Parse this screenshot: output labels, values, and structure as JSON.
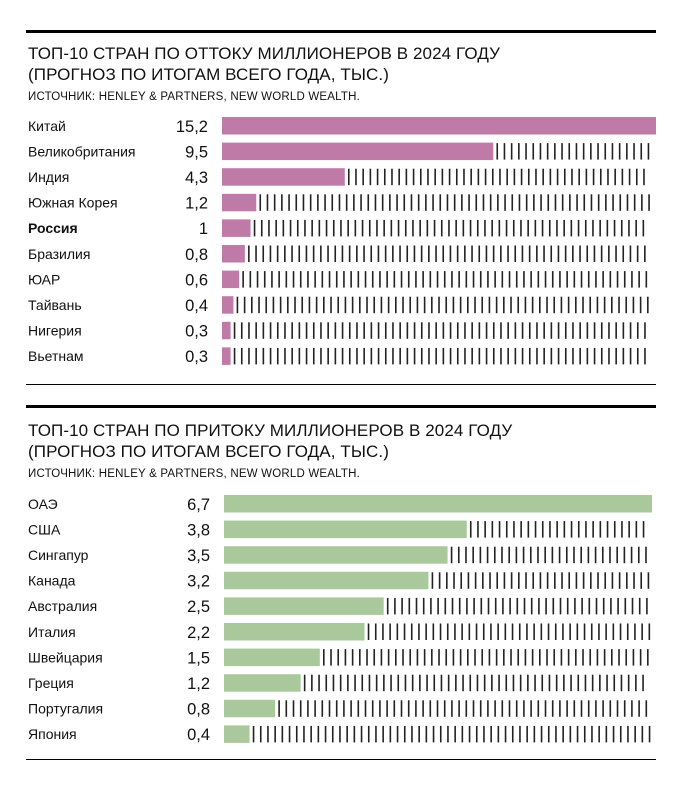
{
  "charts": [
    {
      "title_line1": "ТОП-10 СТРАН ПО ОТТОКУ МИЛЛИОНЕРОВ В 2024 ГОДУ",
      "title_line2": "(ПРОГНОЗ ПО ИТОГАМ ВСЕГО ГОДА, ТЫС.)",
      "source": "ИСТОЧНИК: HENLEY & PARTNERS, NEW WORLD WEALTH."
    },
    {
      "title_line1": "ТОП-10 СТРАН ПО ПРИТОКУ МИЛЛИОНЕРОВ В 2024 ГОДУ",
      "title_line2": "(ПРОГНОЗ ПО ИТОГАМ ВСЕГО ГОДА, ТЫС.)",
      "source": "ИСТОЧНИК: HENLEY & PARTNERS, NEW WORLD WEALTH."
    }
  ],
  "chart_data": [
    {
      "type": "bar",
      "orientation": "horizontal",
      "title": "ТОП-10 СТРАН ПО ОТТОКУ МИЛЛИОНЕРОВ В 2024 ГОДУ (ПРОГНОЗ ПО ИТОГАМ ВСЕГО ГОДА, ТЫС.)",
      "categories": [
        "Китай",
        "Великобритания",
        "Индия",
        "Южная Корея",
        "Россия",
        "Бразилия",
        "ЮАР",
        "Тайвань",
        "Нигерия",
        "Вьетнам"
      ],
      "values": [
        15.2,
        9.5,
        4.3,
        1.2,
        1,
        0.8,
        0.6,
        0.4,
        0.3,
        0.3
      ],
      "value_labels": [
        "15,2",
        "9,5",
        "4,3",
        "1,2",
        "1",
        "0,8",
        "0,6",
        "0,4",
        "0,3",
        "0,3"
      ],
      "highlight": [
        "Россия"
      ],
      "bar_color": "#bf7aa8",
      "tick_color": "#222222",
      "xlim": [
        0,
        15.2
      ],
      "grid": false,
      "legend": "none"
    },
    {
      "type": "bar",
      "orientation": "horizontal",
      "title": "ТОП-10 СТРАН ПО ПРИТОКУ МИЛЛИОНЕРОВ В 2024 ГОДУ (ПРОГНОЗ ПО ИТОГАМ ВСЕГО ГОДА, ТЫС.)",
      "categories": [
        "ОАЭ",
        "США",
        "Сингапур",
        "Канада",
        "Австралия",
        "Италия",
        "Швейцария",
        "Греция",
        "Португалия",
        "Япония"
      ],
      "values": [
        6.7,
        3.8,
        3.5,
        3.2,
        2.5,
        2.2,
        1.5,
        1.2,
        0.8,
        0.4
      ],
      "value_labels": [
        "6,7",
        "3,8",
        "3,5",
        "3,2",
        "2,5",
        "2,2",
        "1,5",
        "1,2",
        "0,8",
        "0,4"
      ],
      "highlight": [],
      "bar_color": "#a9c99c",
      "tick_color": "#222222",
      "xlim": [
        0,
        6.7
      ],
      "grid": false,
      "legend": "none"
    }
  ]
}
